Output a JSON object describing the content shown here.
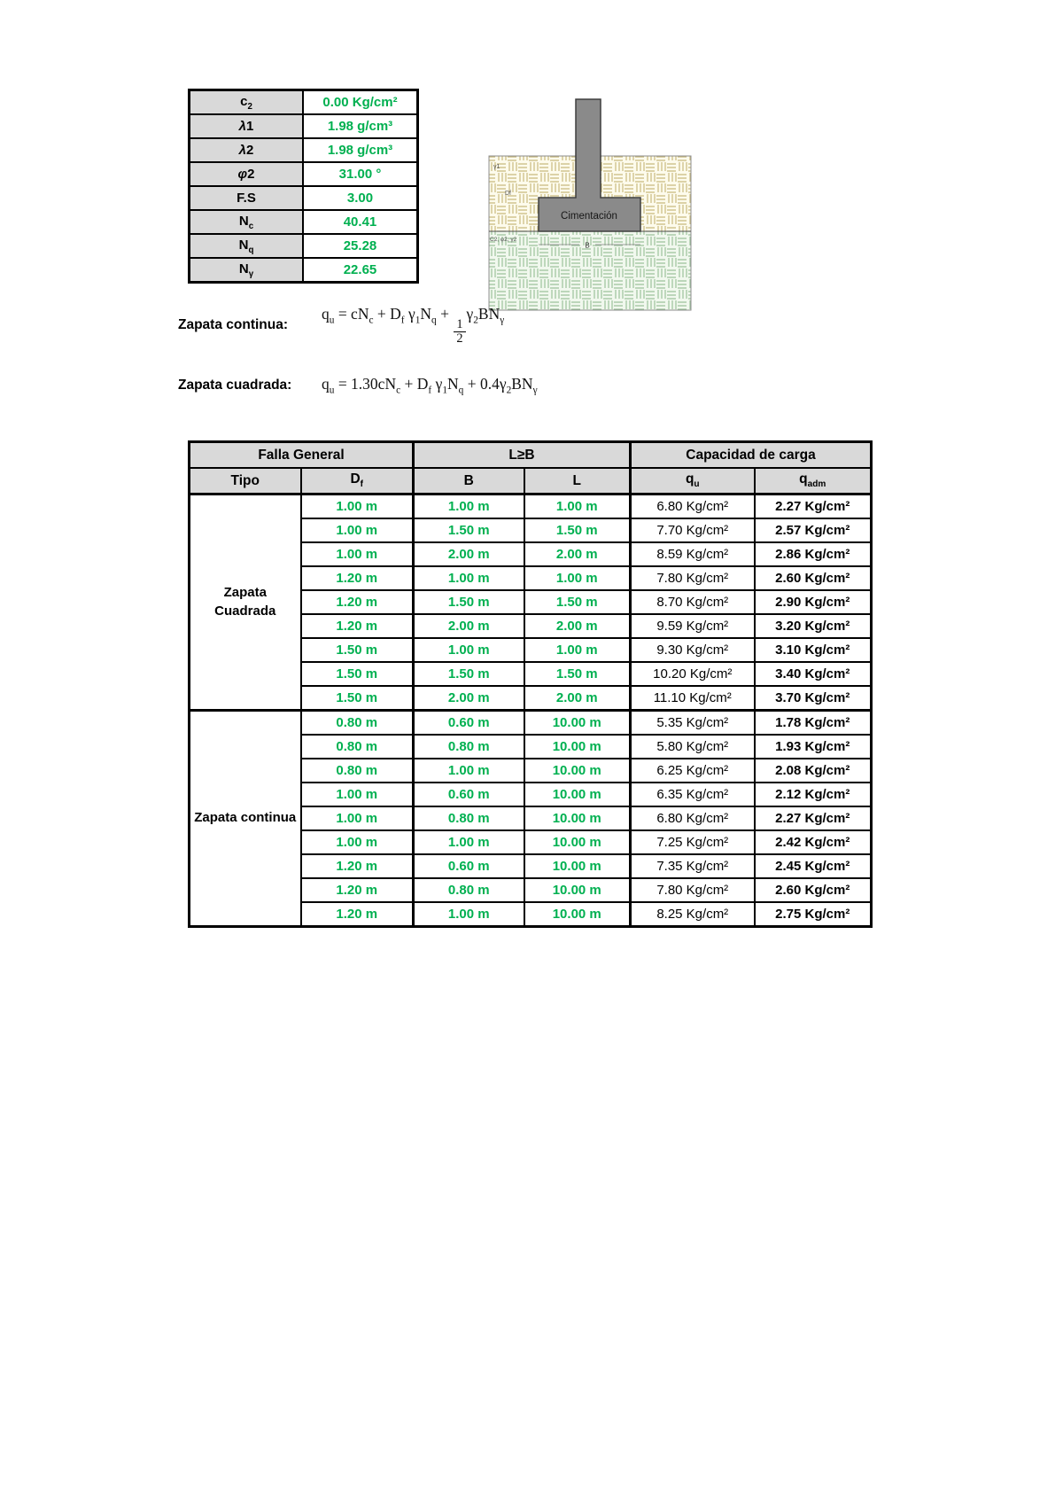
{
  "colors": {
    "green_value": "#00B050",
    "header_bg": "#D9D9D9",
    "group_bg": "#F2F2F2",
    "border": "#000000",
    "footing_gray": "#8a8a8a",
    "soil_upper_bg": "#fdfbec",
    "soil_upper_hatch": "#c9ba7e",
    "soil_lower_bg": "#f1f8ee",
    "soil_lower_hatch": "#9cc29c"
  },
  "param_table": {
    "rows": [
      {
        "label_html": "c<sub>2</sub>",
        "value": "0.00 Kg/cm²"
      },
      {
        "label_html": "<i>λ</i>1",
        "value": "1.98 g/cm³"
      },
      {
        "label_html": "<i>λ</i>2",
        "value": "1.98 g/cm³"
      },
      {
        "label_html": "<i>φ</i>2",
        "value": "31.00 °"
      },
      {
        "label_html": "F.S",
        "value": "3.00"
      },
      {
        "label_html": "N<sub>c</sub>",
        "value": "40.41"
      },
      {
        "label_html": "N<sub>q</sub>",
        "value": "25.28"
      },
      {
        "label_html": "N<sub>γ</sub>",
        "value": "22.65"
      }
    ]
  },
  "diagram": {
    "footing_label": "Cimentación",
    "gamma1_label": "γ1",
    "df_label": "Df",
    "layer2_label": "C2, φ2, γ2",
    "b_label": "B"
  },
  "formulas": [
    {
      "label": "Zapata continua:",
      "math_html": "q<sub>u</sub> = cN<sub>c</sub> + D<sub>f</sub> γ<sub>1</sub>N<sub>q</sub> + <span class='frac'><span class='fn'>1</span><span class='fd'>2</span></span>γ<sub>2</sub>BN<sub>γ</sub>"
    },
    {
      "label": "Zapata cuadrada:",
      "math_html": "q<sub>u</sub> = 1.30cN<sub>c</sub> + D<sub>f</sub> γ<sub>1</sub>N<sub>q</sub> + 0.4γ<sub>2</sub>BN<sub>γ</sub>"
    }
  ],
  "main_table": {
    "header1": [
      "Falla General",
      "L≥B",
      "Capacidad de carga"
    ],
    "header2_html": [
      "Tipo",
      "D<sub>f</sub>",
      "B",
      "L",
      "q<sub>u</sub>",
      "q<sub>adm</sub>"
    ],
    "groups": [
      {
        "tipo": "Zapata Cuadrada",
        "rows": [
          [
            "1.00 m",
            "1.00 m",
            "1.00 m",
            "6.80 Kg/cm²",
            "2.27 Kg/cm²"
          ],
          [
            "1.00 m",
            "1.50 m",
            "1.50 m",
            "7.70 Kg/cm²",
            "2.57 Kg/cm²"
          ],
          [
            "1.00 m",
            "2.00 m",
            "2.00 m",
            "8.59 Kg/cm²",
            "2.86 Kg/cm²"
          ],
          [
            "1.20 m",
            "1.00 m",
            "1.00 m",
            "7.80 Kg/cm²",
            "2.60 Kg/cm²"
          ],
          [
            "1.20 m",
            "1.50 m",
            "1.50 m",
            "8.70 Kg/cm²",
            "2.90 Kg/cm²"
          ],
          [
            "1.20 m",
            "2.00 m",
            "2.00 m",
            "9.59 Kg/cm²",
            "3.20 Kg/cm²"
          ],
          [
            "1.50 m",
            "1.00 m",
            "1.00 m",
            "9.30 Kg/cm²",
            "3.10 Kg/cm²"
          ],
          [
            "1.50 m",
            "1.50 m",
            "1.50 m",
            "10.20 Kg/cm²",
            "3.40 Kg/cm²"
          ],
          [
            "1.50 m",
            "2.00 m",
            "2.00 m",
            "11.10 Kg/cm²",
            "3.70 Kg/cm²"
          ]
        ]
      },
      {
        "tipo": "Zapata continua",
        "rows": [
          [
            "0.80 m",
            "0.60 m",
            "10.00 m",
            "5.35 Kg/cm²",
            "1.78 Kg/cm²"
          ],
          [
            "0.80 m",
            "0.80 m",
            "10.00 m",
            "5.80 Kg/cm²",
            "1.93 Kg/cm²"
          ],
          [
            "0.80 m",
            "1.00 m",
            "10.00 m",
            "6.25 Kg/cm²",
            "2.08 Kg/cm²"
          ],
          [
            "1.00 m",
            "0.60 m",
            "10.00 m",
            "6.35 Kg/cm²",
            "2.12 Kg/cm²"
          ],
          [
            "1.00 m",
            "0.80 m",
            "10.00 m",
            "6.80 Kg/cm²",
            "2.27 Kg/cm²"
          ],
          [
            "1.00 m",
            "1.00 m",
            "10.00 m",
            "7.25 Kg/cm²",
            "2.42 Kg/cm²"
          ],
          [
            "1.20 m",
            "0.60 m",
            "10.00 m",
            "7.35 Kg/cm²",
            "2.45 Kg/cm²"
          ],
          [
            "1.20 m",
            "0.80 m",
            "10.00 m",
            "7.80 Kg/cm²",
            "2.60 Kg/cm²"
          ],
          [
            "1.20 m",
            "1.00 m",
            "10.00 m",
            "8.25 Kg/cm²",
            "2.75 Kg/cm²"
          ]
        ]
      }
    ]
  }
}
